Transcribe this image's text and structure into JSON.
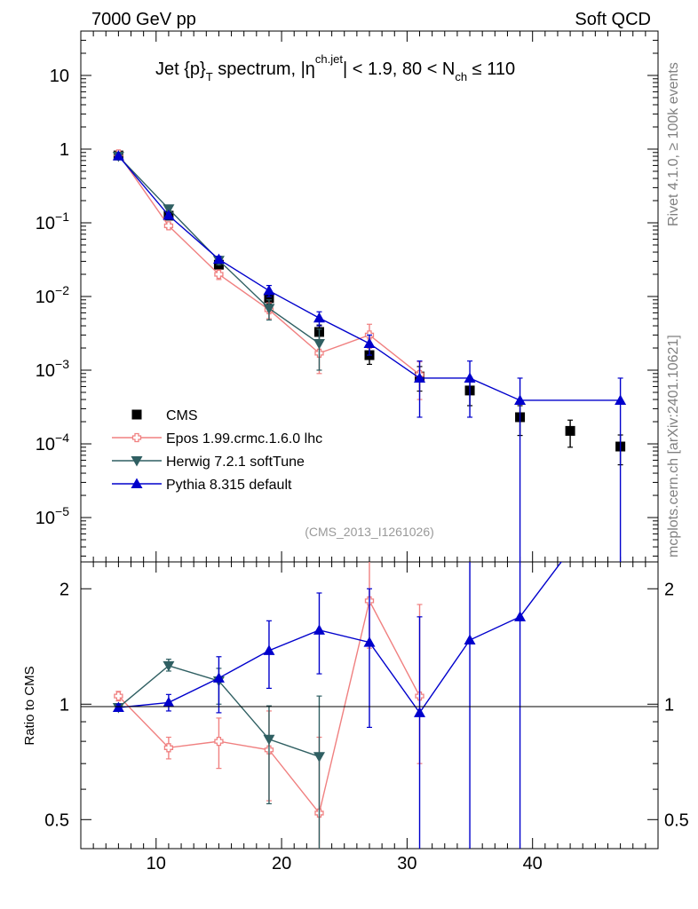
{
  "header": {
    "left": "7000 GeV pp",
    "right": "Soft QCD",
    "side_top": "Rivet 4.1.0, ≥ 100k events",
    "side_bottom": "mcplots.cern.ch [arXiv:2401.10621]"
  },
  "chart_data": [
    {
      "type": "scatter",
      "panel": "main",
      "title_parts": {
        "a": "Jet {p}",
        "a_sub": "T",
        "b": " spectrum, |η",
        "b_sup": "ch.jet",
        "c": "| < 1.9, 80 < N",
        "c_sub": "ch",
        "d": " ≤ 110"
      },
      "analysis_label": "(CMS_2013_I1261026)",
      "x_range": [
        4,
        50
      ],
      "y_scale": "log",
      "y_range": [
        2.5e-06,
        40
      ],
      "y_tick_labels": [
        {
          "value": 10,
          "base": "10",
          "exp": ""
        },
        {
          "value": 1,
          "base": "1",
          "exp": ""
        },
        {
          "value": 0.1,
          "base": "10",
          "exp": "−1"
        },
        {
          "value": 0.01,
          "base": "10",
          "exp": "−2"
        },
        {
          "value": 0.001,
          "base": "10",
          "exp": "−3"
        },
        {
          "value": 0.0001,
          "base": "10",
          "exp": "−4"
        },
        {
          "value": 1e-05,
          "base": "10",
          "exp": "−5"
        }
      ],
      "legend_position": "bottom-left",
      "series": [
        {
          "name": "CMS",
          "marker": "square",
          "color": "#000000",
          "line": false,
          "x": [
            7,
            11,
            15,
            19,
            23,
            27,
            31,
            35,
            39,
            43,
            47
          ],
          "y": [
            0.82,
            0.125,
            0.027,
            0.0095,
            0.0033,
            0.0016,
            0.00082,
            0.00053,
            0.00023,
            0.00015,
            9.2e-05
          ],
          "err": [
            0.04,
            0.008,
            0.003,
            0.0015,
            0.0008,
            0.0004,
            0.0003,
            0.0002,
            0.0001,
            6e-05,
            4e-05
          ]
        },
        {
          "name": "Epos 1.99.crmc.1.6.0 lhc",
          "marker": "open-cross",
          "color": "#f08080",
          "line": true,
          "x": [
            7,
            11,
            15,
            19,
            23,
            27,
            31
          ],
          "y": [
            0.86,
            0.091,
            0.02,
            0.0066,
            0.0017,
            0.003,
            0.00087
          ],
          "err_lo": [
            0.86,
            0.091,
            0.02,
            0.0066,
            0.0017,
            0.003,
            0.00087
          ],
          "err_hi": [
            0.86,
            0.091,
            0.02,
            0.0066,
            0.0017,
            0.003,
            0.00087
          ],
          "err_lo_v": [
            0.82,
            0.083,
            0.017,
            0.005,
            0.0009,
            0.002,
            0.0004
          ],
          "err_hi_v": [
            0.9,
            0.099,
            0.023,
            0.0082,
            0.0025,
            0.0042,
            0.0013
          ]
        },
        {
          "name": "Herwig 7.2.1 softTune",
          "marker": "triangle-down",
          "color": "#2f5f62",
          "line": true,
          "x": [
            7,
            11,
            15,
            19,
            23
          ],
          "y": [
            0.8,
            0.155,
            0.031,
            0.0069,
            0.0023
          ],
          "err_lo_v": [
            0.77,
            0.145,
            0.027,
            0.0048,
            0.001
          ],
          "err_hi_v": [
            0.83,
            0.165,
            0.035,
            0.009,
            0.0036
          ]
        },
        {
          "name": "Pythia 8.315 default",
          "marker": "triangle-up",
          "color": "#0000cc",
          "line": true,
          "x": [
            7,
            11,
            15,
            19,
            23,
            27,
            31,
            35,
            39,
            47
          ],
          "y": [
            0.81,
            0.126,
            0.032,
            0.012,
            0.0051,
            0.0023,
            0.00078,
            0.00078,
            0.00039,
            0.00039
          ],
          "err_lo_v": [
            0.79,
            0.118,
            0.029,
            0.0099,
            0.004,
            0.0016,
            0.00023,
            0.00023,
            1e-07,
            1e-07
          ],
          "err_hi_v": [
            0.83,
            0.134,
            0.035,
            0.0141,
            0.0062,
            0.003,
            0.00133,
            0.00133,
            0.00078,
            0.00078
          ],
          "step_after_x": 39
        }
      ]
    },
    {
      "type": "scatter",
      "panel": "ratio",
      "ylabel": "Ratio to CMS",
      "x_range": [
        4,
        50
      ],
      "y_scale": "log",
      "y_range": [
        0.42,
        2.35
      ],
      "x_tick_labels": [
        10,
        20,
        30,
        40
      ],
      "y_tick_labels": [
        {
          "value": 2,
          "label": "2"
        },
        {
          "value": 1,
          "label": "1"
        },
        {
          "value": 0.5,
          "label": "0.5"
        }
      ],
      "series": [
        {
          "name": "Epos 1.99.crmc.1.6.0 lhc",
          "color": "#f08080",
          "marker": "open-cross",
          "x": [
            7,
            11,
            15,
            19,
            23,
            27,
            31
          ],
          "y": [
            1.05,
            0.77,
            0.8,
            0.76,
            0.52,
            1.86,
            1.05
          ],
          "lo": [
            1.02,
            0.72,
            0.68,
            0.56,
            0.3,
            1.4,
            0.7
          ],
          "hi": [
            1.08,
            0.82,
            0.92,
            0.96,
            0.82,
            2.4,
            1.82
          ]
        },
        {
          "name": "Herwig 7.2.1 softTune",
          "color": "#2f5f62",
          "marker": "triangle-down",
          "x": [
            7,
            11,
            15,
            19,
            23
          ],
          "y": [
            0.98,
            1.26,
            1.15,
            0.81,
            0.73
          ],
          "lo": [
            0.96,
            1.22,
            1.0,
            0.55,
            0.3
          ],
          "hi": [
            1.0,
            1.31,
            1.24,
            0.99,
            1.05
          ]
        },
        {
          "name": "Pythia 8.315 default",
          "color": "#0000cc",
          "marker": "triangle-up",
          "x": [
            7,
            11,
            15,
            19,
            23,
            27,
            31,
            35,
            39,
            42.5
          ],
          "y": [
            0.98,
            1.01,
            1.17,
            1.38,
            1.56,
            1.45,
            0.95,
            1.47,
            1.69,
            2.4
          ],
          "lo": [
            0.96,
            0.96,
            0.95,
            1.1,
            1.2,
            0.87,
            0.3,
            0.38,
            0.3,
            null
          ],
          "hi": [
            1.0,
            1.06,
            1.33,
            1.65,
            1.95,
            2.0,
            1.69,
            2.4,
            2.4,
            null
          ]
        }
      ]
    }
  ]
}
